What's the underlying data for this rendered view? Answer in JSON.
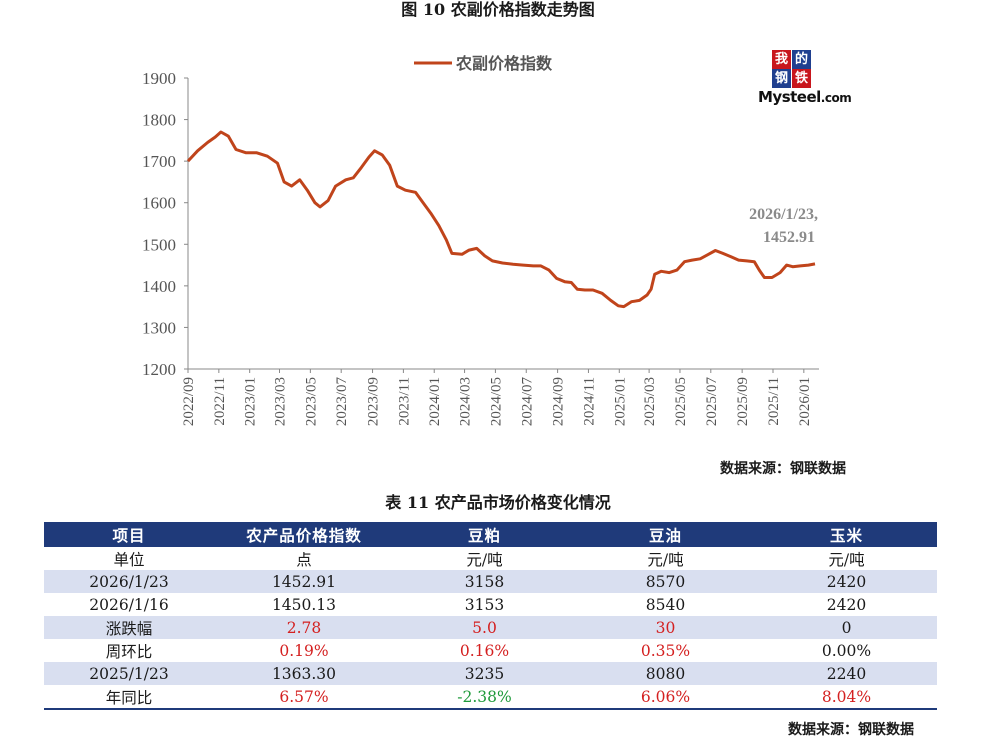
{
  "figure_title": "图 10 农副价格指数走势图",
  "logo": {
    "chars": [
      "我",
      "的",
      "钢",
      "铁"
    ],
    "text_main": "Mysteel",
    "text_suffix": ".com"
  },
  "chart_data": {
    "type": "line",
    "series": [
      {
        "name": "农副价格指数",
        "color": "#c0441b",
        "points": [
          [
            "2022-09-01",
            1700
          ],
          [
            "2022-09-20",
            1725
          ],
          [
            "2022-10-10",
            1745
          ],
          [
            "2022-10-25",
            1758
          ],
          [
            "2022-11-05",
            1770
          ],
          [
            "2022-11-20",
            1760
          ],
          [
            "2022-12-05",
            1728
          ],
          [
            "2022-12-25",
            1720
          ],
          [
            "2023-01-15",
            1720
          ],
          [
            "2023-02-05",
            1712
          ],
          [
            "2023-02-25",
            1695
          ],
          [
            "2023-03-10",
            1650
          ],
          [
            "2023-03-25",
            1640
          ],
          [
            "2023-04-10",
            1655
          ],
          [
            "2023-04-25",
            1630
          ],
          [
            "2023-05-10",
            1600
          ],
          [
            "2023-05-20",
            1590
          ],
          [
            "2023-06-05",
            1605
          ],
          [
            "2023-06-20",
            1640
          ],
          [
            "2023-07-10",
            1655
          ],
          [
            "2023-07-25",
            1660
          ],
          [
            "2023-08-10",
            1685
          ],
          [
            "2023-08-25",
            1710
          ],
          [
            "2023-09-05",
            1725
          ],
          [
            "2023-09-20",
            1715
          ],
          [
            "2023-10-05",
            1690
          ],
          [
            "2023-10-20",
            1640
          ],
          [
            "2023-11-05",
            1630
          ],
          [
            "2023-11-25",
            1625
          ],
          [
            "2023-12-10",
            1600
          ],
          [
            "2023-12-25",
            1575
          ],
          [
            "2024-01-10",
            1545
          ],
          [
            "2024-01-25",
            1510
          ],
          [
            "2024-02-05",
            1478
          ],
          [
            "2024-02-25",
            1476
          ],
          [
            "2024-03-10",
            1486
          ],
          [
            "2024-03-25",
            1490
          ],
          [
            "2024-04-10",
            1472
          ],
          [
            "2024-04-25",
            1460
          ],
          [
            "2024-05-15",
            1455
          ],
          [
            "2024-06-05",
            1452
          ],
          [
            "2024-06-25",
            1450
          ],
          [
            "2024-07-15",
            1448
          ],
          [
            "2024-07-30",
            1448
          ],
          [
            "2024-08-15",
            1438
          ],
          [
            "2024-08-30",
            1418
          ],
          [
            "2024-09-15",
            1410
          ],
          [
            "2024-09-28",
            1408
          ],
          [
            "2024-10-10",
            1392
          ],
          [
            "2024-10-25",
            1390
          ],
          [
            "2024-11-10",
            1390
          ],
          [
            "2024-11-28",
            1382
          ],
          [
            "2024-12-15",
            1365
          ],
          [
            "2024-12-30",
            1352
          ],
          [
            "2025-01-10",
            1350
          ],
          [
            "2025-01-25",
            1362
          ],
          [
            "2025-02-10",
            1365
          ],
          [
            "2025-02-25",
            1378
          ],
          [
            "2025-03-05",
            1392
          ],
          [
            "2025-03-12",
            1428
          ],
          [
            "2025-03-25",
            1435
          ],
          [
            "2025-04-10",
            1432
          ],
          [
            "2025-04-25",
            1438
          ],
          [
            "2025-05-10",
            1458
          ],
          [
            "2025-05-25",
            1462
          ],
          [
            "2025-06-10",
            1465
          ],
          [
            "2025-06-25",
            1475
          ],
          [
            "2025-07-10",
            1485
          ],
          [
            "2025-07-25",
            1478
          ],
          [
            "2025-08-10",
            1470
          ],
          [
            "2025-08-25",
            1462
          ],
          [
            "2025-09-10",
            1460
          ],
          [
            "2025-09-25",
            1458
          ],
          [
            "2025-10-05",
            1438
          ],
          [
            "2025-10-15",
            1420
          ],
          [
            "2025-10-30",
            1420
          ],
          [
            "2025-11-15",
            1432
          ],
          [
            "2025-11-28",
            1450
          ],
          [
            "2025-12-10",
            1446
          ],
          [
            "2025-12-25",
            1448
          ],
          [
            "2026-01-10",
            1450
          ],
          [
            "2026-01-23",
            1452.91
          ]
        ]
      }
    ],
    "x_range": [
      "2022-09-01",
      "2026-01-31"
    ],
    "ylim": [
      1200,
      1900
    ],
    "yticks": [
      1200,
      1300,
      1400,
      1500,
      1600,
      1700,
      1800,
      1900
    ],
    "xticks": [
      "2022/09",
      "2022/11",
      "2023/01",
      "2023/03",
      "2023/05",
      "2023/07",
      "2023/09",
      "2023/11",
      "2024/01",
      "2024/03",
      "2024/05",
      "2024/07",
      "2024/09",
      "2024/11",
      "2025/01",
      "2025/03",
      "2025/05",
      "2025/07",
      "2025/09",
      "2025/11",
      "2026/01"
    ],
    "annotation": {
      "line1": "2026/1/23,",
      "line2": "1452.91"
    },
    "legend_position": "top-center",
    "grid": false
  },
  "source_chart": "数据来源：钢联数据",
  "table": {
    "title": "表 11 农产品市场价格变化情况",
    "headers": [
      "项目",
      "农产品价格指数",
      "豆粕",
      "豆油",
      "玉米"
    ],
    "rows": [
      {
        "cells": [
          "单位",
          "点",
          "元/吨",
          "元/吨",
          "元/吨"
        ],
        "colors": [
          "",
          "",
          "",
          "",
          ""
        ]
      },
      {
        "cells": [
          "2026/1/23",
          "1452.91",
          "3158",
          "8570",
          "2420"
        ],
        "colors": [
          "",
          "",
          "",
          "",
          ""
        ]
      },
      {
        "cells": [
          "2026/1/16",
          "1450.13",
          "3153",
          "8540",
          "2420"
        ],
        "colors": [
          "",
          "",
          "",
          "",
          ""
        ]
      },
      {
        "cells": [
          "涨跌幅",
          "2.78",
          "5.0",
          "30",
          "0"
        ],
        "colors": [
          "",
          "red",
          "red",
          "red",
          ""
        ]
      },
      {
        "cells": [
          "周环比",
          "0.19%",
          "0.16%",
          "0.35%",
          "0.00%"
        ],
        "colors": [
          "",
          "red",
          "red",
          "red",
          ""
        ]
      },
      {
        "cells": [
          "2025/1/23",
          "1363.30",
          "3235",
          "8080",
          "2240"
        ],
        "colors": [
          "",
          "",
          "",
          "",
          ""
        ]
      },
      {
        "cells": [
          "年同比",
          "6.57%",
          "-2.38%",
          "6.06%",
          "8.04%"
        ],
        "colors": [
          "",
          "red",
          "green",
          "red",
          "red"
        ]
      }
    ]
  },
  "source_table": "数据来源：钢联数据"
}
